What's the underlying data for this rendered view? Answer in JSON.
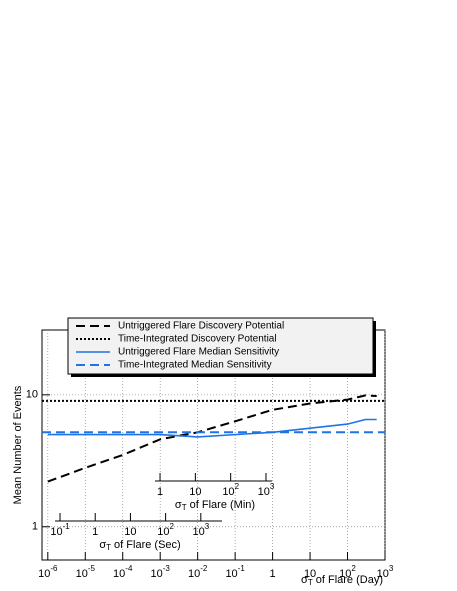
{
  "chart_data": {
    "type": "line",
    "ylabel": "Mean Number of Events",
    "xlabel": {
      "symbol": "σ",
      "subscript": "T",
      "text": " of Flare (Day)"
    },
    "xscale": "log",
    "yscale": "log",
    "grid": true,
    "legend": "top",
    "xlim": [
      7e-07,
      1000
    ],
    "ylim": [
      0.56,
      31
    ],
    "xticks": [
      {
        "value": 1e-06,
        "label": "10^-6"
      },
      {
        "value": 1e-05,
        "label": "10^-5"
      },
      {
        "value": 0.0001,
        "label": "10^-4"
      },
      {
        "value": 0.001,
        "label": "10^-3"
      },
      {
        "value": 0.01,
        "label": "10^-2"
      },
      {
        "value": 0.1,
        "label": "10^-1"
      },
      1,
      10,
      {
        "value": 100,
        "label": "10^2"
      },
      {
        "value": 1000,
        "label": "10^3"
      }
    ],
    "yticks": [
      1,
      10
    ],
    "series": [
      {
        "name": "Untriggered Flare Discovery Potential",
        "color": "#000000",
        "style": "dashed",
        "x": [
          1e-06,
          1e-05,
          0.0001,
          0.001,
          0.01,
          0.1,
          1,
          10,
          100,
          300,
          600
        ],
        "values": [
          2.2,
          2.8,
          3.5,
          4.6,
          5.2,
          6.3,
          7.7,
          8.6,
          9.2,
          9.9,
          9.8
        ]
      },
      {
        "name": "Time-Integrated Discovery Potential",
        "color": "#000000",
        "style": "dotted",
        "x": [
          7e-07,
          1000
        ],
        "values": [
          9,
          9
        ]
      },
      {
        "name": "Untriggered Flare Median Sensitivity",
        "color": "#1e73e8",
        "style": "solid",
        "x": [
          1e-06,
          0.001,
          0.01,
          1,
          100,
          300,
          600
        ],
        "values": [
          5.0,
          5.0,
          4.8,
          5.2,
          6.0,
          6.5,
          6.5
        ]
      },
      {
        "name": "Time-Integrated Median Sensitivity",
        "color": "#1e73e8",
        "style": "dashed",
        "x": [
          7e-07,
          1000
        ],
        "values": [
          5.2,
          5.2
        ]
      }
    ],
    "inner_axes": [
      {
        "label": {
          "symbol": "σ",
          "subscript": "T",
          "text": " of Flare (Min)"
        },
        "xlim": [
          0.72,
          1480
        ],
        "xticks": [
          1,
          10,
          {
            "value": 100,
            "label": "10^2"
          },
          {
            "value": 1000,
            "label": "10^3"
          }
        ]
      },
      {
        "label": {
          "symbol": "σ",
          "subscript": "T",
          "text": " of Flare (Sec)"
        },
        "xlim": [
          0.072,
          4000
        ],
        "xticks": [
          {
            "value": 0.1,
            "label": "10^-1"
          },
          1,
          10,
          {
            "value": 100,
            "label": "10^2"
          },
          {
            "value": 1000,
            "label": "10^3"
          }
        ]
      }
    ]
  }
}
